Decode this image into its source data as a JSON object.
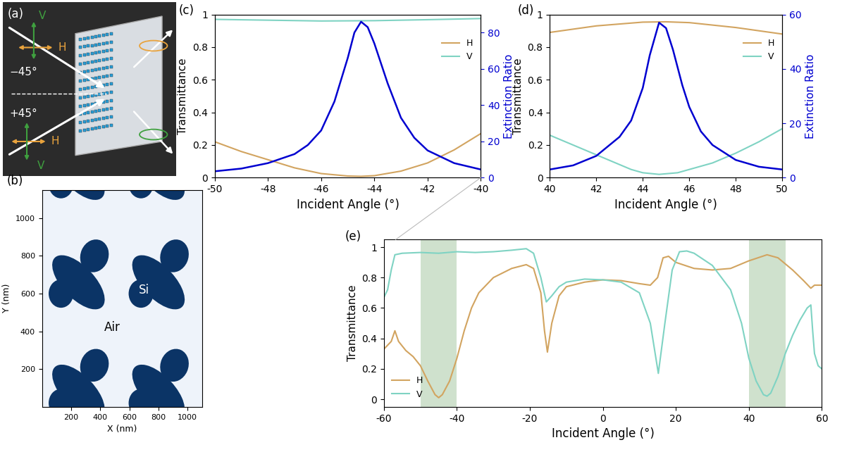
{
  "diagram": {
    "label": "(a)",
    "texts": {
      "v_top": "V",
      "h_top": "H",
      "angle_top": "−45°",
      "angle_bottom": "+45°",
      "h_bottom": "H",
      "v_bottom": "V"
    }
  },
  "chart_data": [
    {
      "panel": "(b)",
      "type": "pattern",
      "xlabel": "X (nm)",
      "ylabel": "Y (nm)",
      "xlim": [
        0,
        1100
      ],
      "ylim": [
        0,
        1150
      ],
      "xticks": [
        200,
        400,
        600,
        800,
        1000
      ],
      "yticks": [
        200,
        400,
        600,
        800,
        1000
      ],
      "region_labels": [
        "Si",
        "Air"
      ],
      "colors": [
        "#0b3466",
        "#eef3fa"
      ]
    },
    {
      "panel": "(c)",
      "type": "line",
      "xlabel": "Incident Angle (°)",
      "ylabel": "Transmittance",
      "y2label": "Extinction Ratio",
      "xlim": [
        -50,
        -40
      ],
      "xticks": [
        -50,
        -48,
        -46,
        -44,
        -42,
        -40
      ],
      "ylim": [
        0,
        1
      ],
      "yticks": [
        0,
        0.2,
        0.4,
        0.6,
        0.8,
        1
      ],
      "y2lim": [
        0,
        90
      ],
      "y2ticks": [
        0,
        20,
        40,
        60,
        80
      ],
      "legend": "upper right",
      "series": [
        {
          "name": "H",
          "color": "#d2a460",
          "x": [
            -50,
            -49,
            -48,
            -47,
            -46,
            -45,
            -44.5,
            -44,
            -43,
            -42,
            -41,
            -40
          ],
          "values": [
            0.22,
            0.16,
            0.11,
            0.06,
            0.025,
            0.01,
            0.008,
            0.012,
            0.04,
            0.09,
            0.17,
            0.27
          ]
        },
        {
          "name": "V",
          "color": "#7fd3c3",
          "x": [
            -50,
            -48,
            -46,
            -44,
            -42,
            -40
          ],
          "values": [
            0.97,
            0.965,
            0.96,
            0.962,
            0.968,
            0.975
          ]
        },
        {
          "axis": "y2",
          "color": "#0000d0",
          "x": [
            -50,
            -49,
            -48,
            -47,
            -46.5,
            -46,
            -45.5,
            -45,
            -44.75,
            -44.5,
            -44.25,
            -44,
            -43.5,
            -43,
            -42.5,
            -42,
            -41,
            -40
          ],
          "values": [
            3.5,
            5,
            8,
            13,
            18,
            26,
            42,
            66,
            80,
            86,
            83,
            74,
            52,
            33,
            22,
            15,
            8,
            4.5
          ]
        }
      ]
    },
    {
      "panel": "(d)",
      "type": "line",
      "xlabel": "Incident Angle (°)",
      "ylabel": "Transmittance",
      "y2label": "Extinction Ratio",
      "xlim": [
        40,
        50
      ],
      "xticks": [
        40,
        42,
        44,
        46,
        48,
        50
      ],
      "ylim": [
        0,
        1
      ],
      "yticks": [
        0,
        0.2,
        0.4,
        0.6,
        0.8,
        1
      ],
      "y2lim": [
        0,
        60
      ],
      "y2ticks": [
        0,
        20,
        40,
        60
      ],
      "legend": "upper right",
      "series": [
        {
          "name": "H",
          "color": "#d2a460",
          "x": [
            40,
            42,
            44,
            45,
            46,
            48,
            50
          ],
          "values": [
            0.89,
            0.93,
            0.953,
            0.955,
            0.95,
            0.92,
            0.88
          ]
        },
        {
          "name": "V",
          "color": "#7fd3c3",
          "x": [
            40,
            41,
            42,
            43,
            43.5,
            44,
            44.7,
            45.5,
            46,
            47,
            48,
            49,
            50
          ],
          "values": [
            0.26,
            0.2,
            0.14,
            0.08,
            0.05,
            0.03,
            0.02,
            0.03,
            0.05,
            0.09,
            0.15,
            0.22,
            0.3
          ]
        },
        {
          "axis": "y2",
          "color": "#0000d0",
          "x": [
            40,
            41,
            42,
            43,
            43.5,
            44,
            44.3,
            44.7,
            45,
            45.3,
            45.7,
            46,
            46.5,
            47,
            48,
            49,
            50
          ],
          "values": [
            3,
            4.5,
            8,
            15,
            21,
            33,
            45,
            57,
            55,
            47,
            34,
            26,
            17,
            12,
            6.5,
            4,
            3
          ]
        }
      ]
    },
    {
      "panel": "(e)",
      "type": "line",
      "xlabel": "Incident Angle (°)",
      "ylabel": "Transmittance",
      "xlim": [
        -60,
        60
      ],
      "xticks": [
        -60,
        -40,
        -20,
        0,
        20,
        40,
        60
      ],
      "ylim": [
        -0.05,
        1.05
      ],
      "yticks": [
        0,
        0.2,
        0.4,
        0.6,
        0.8,
        1
      ],
      "legend": "lower left",
      "highlight_ranges": [
        [
          -50,
          -40
        ],
        [
          40,
          50
        ]
      ],
      "highlight_color": "#a9c9a4",
      "series": [
        {
          "name": "H",
          "color": "#d2a460",
          "x": [
            -60,
            -58,
            -57,
            -56,
            -54,
            -52,
            -50,
            -48,
            -46,
            -45,
            -44,
            -42,
            -40,
            -38,
            -36,
            -34,
            -30,
            -25,
            -21,
            -19,
            -17,
            -16,
            -15.2,
            -14,
            -12,
            -10,
            -5,
            0,
            5,
            10,
            13,
            15,
            16.5,
            18,
            20,
            25,
            30,
            35,
            40,
            45,
            48,
            52,
            55,
            57,
            58,
            60
          ],
          "values": [
            0.33,
            0.38,
            0.45,
            0.38,
            0.32,
            0.28,
            0.22,
            0.12,
            0.03,
            0.01,
            0.03,
            0.12,
            0.27,
            0.45,
            0.6,
            0.7,
            0.8,
            0.86,
            0.885,
            0.86,
            0.7,
            0.45,
            0.31,
            0.5,
            0.68,
            0.74,
            0.77,
            0.785,
            0.78,
            0.76,
            0.75,
            0.8,
            0.93,
            0.94,
            0.9,
            0.86,
            0.85,
            0.86,
            0.91,
            0.95,
            0.93,
            0.85,
            0.78,
            0.73,
            0.75,
            0.75
          ]
        },
        {
          "name": "V",
          "color": "#7fd3c3",
          "x": [
            -60,
            -59,
            -58,
            -57,
            -55,
            -50,
            -45,
            -40,
            -35,
            -30,
            -25,
            -21,
            -19,
            -17,
            -15.5,
            -14,
            -12,
            -10,
            -5,
            0,
            5,
            10,
            13,
            15.2,
            17,
            19,
            21,
            23,
            25,
            30,
            35,
            38,
            40,
            42,
            44,
            45,
            46,
            48,
            50,
            52,
            54,
            56,
            57,
            57.5,
            58,
            59,
            60
          ],
          "values": [
            0.67,
            0.72,
            0.85,
            0.95,
            0.96,
            0.965,
            0.96,
            0.97,
            0.965,
            0.97,
            0.98,
            0.99,
            0.96,
            0.8,
            0.64,
            0.68,
            0.74,
            0.77,
            0.79,
            0.785,
            0.77,
            0.7,
            0.5,
            0.17,
            0.5,
            0.85,
            0.97,
            0.975,
            0.96,
            0.88,
            0.72,
            0.5,
            0.27,
            0.12,
            0.03,
            0.02,
            0.04,
            0.15,
            0.3,
            0.42,
            0.52,
            0.6,
            0.62,
            0.45,
            0.3,
            0.22,
            0.2
          ]
        }
      ]
    }
  ]
}
